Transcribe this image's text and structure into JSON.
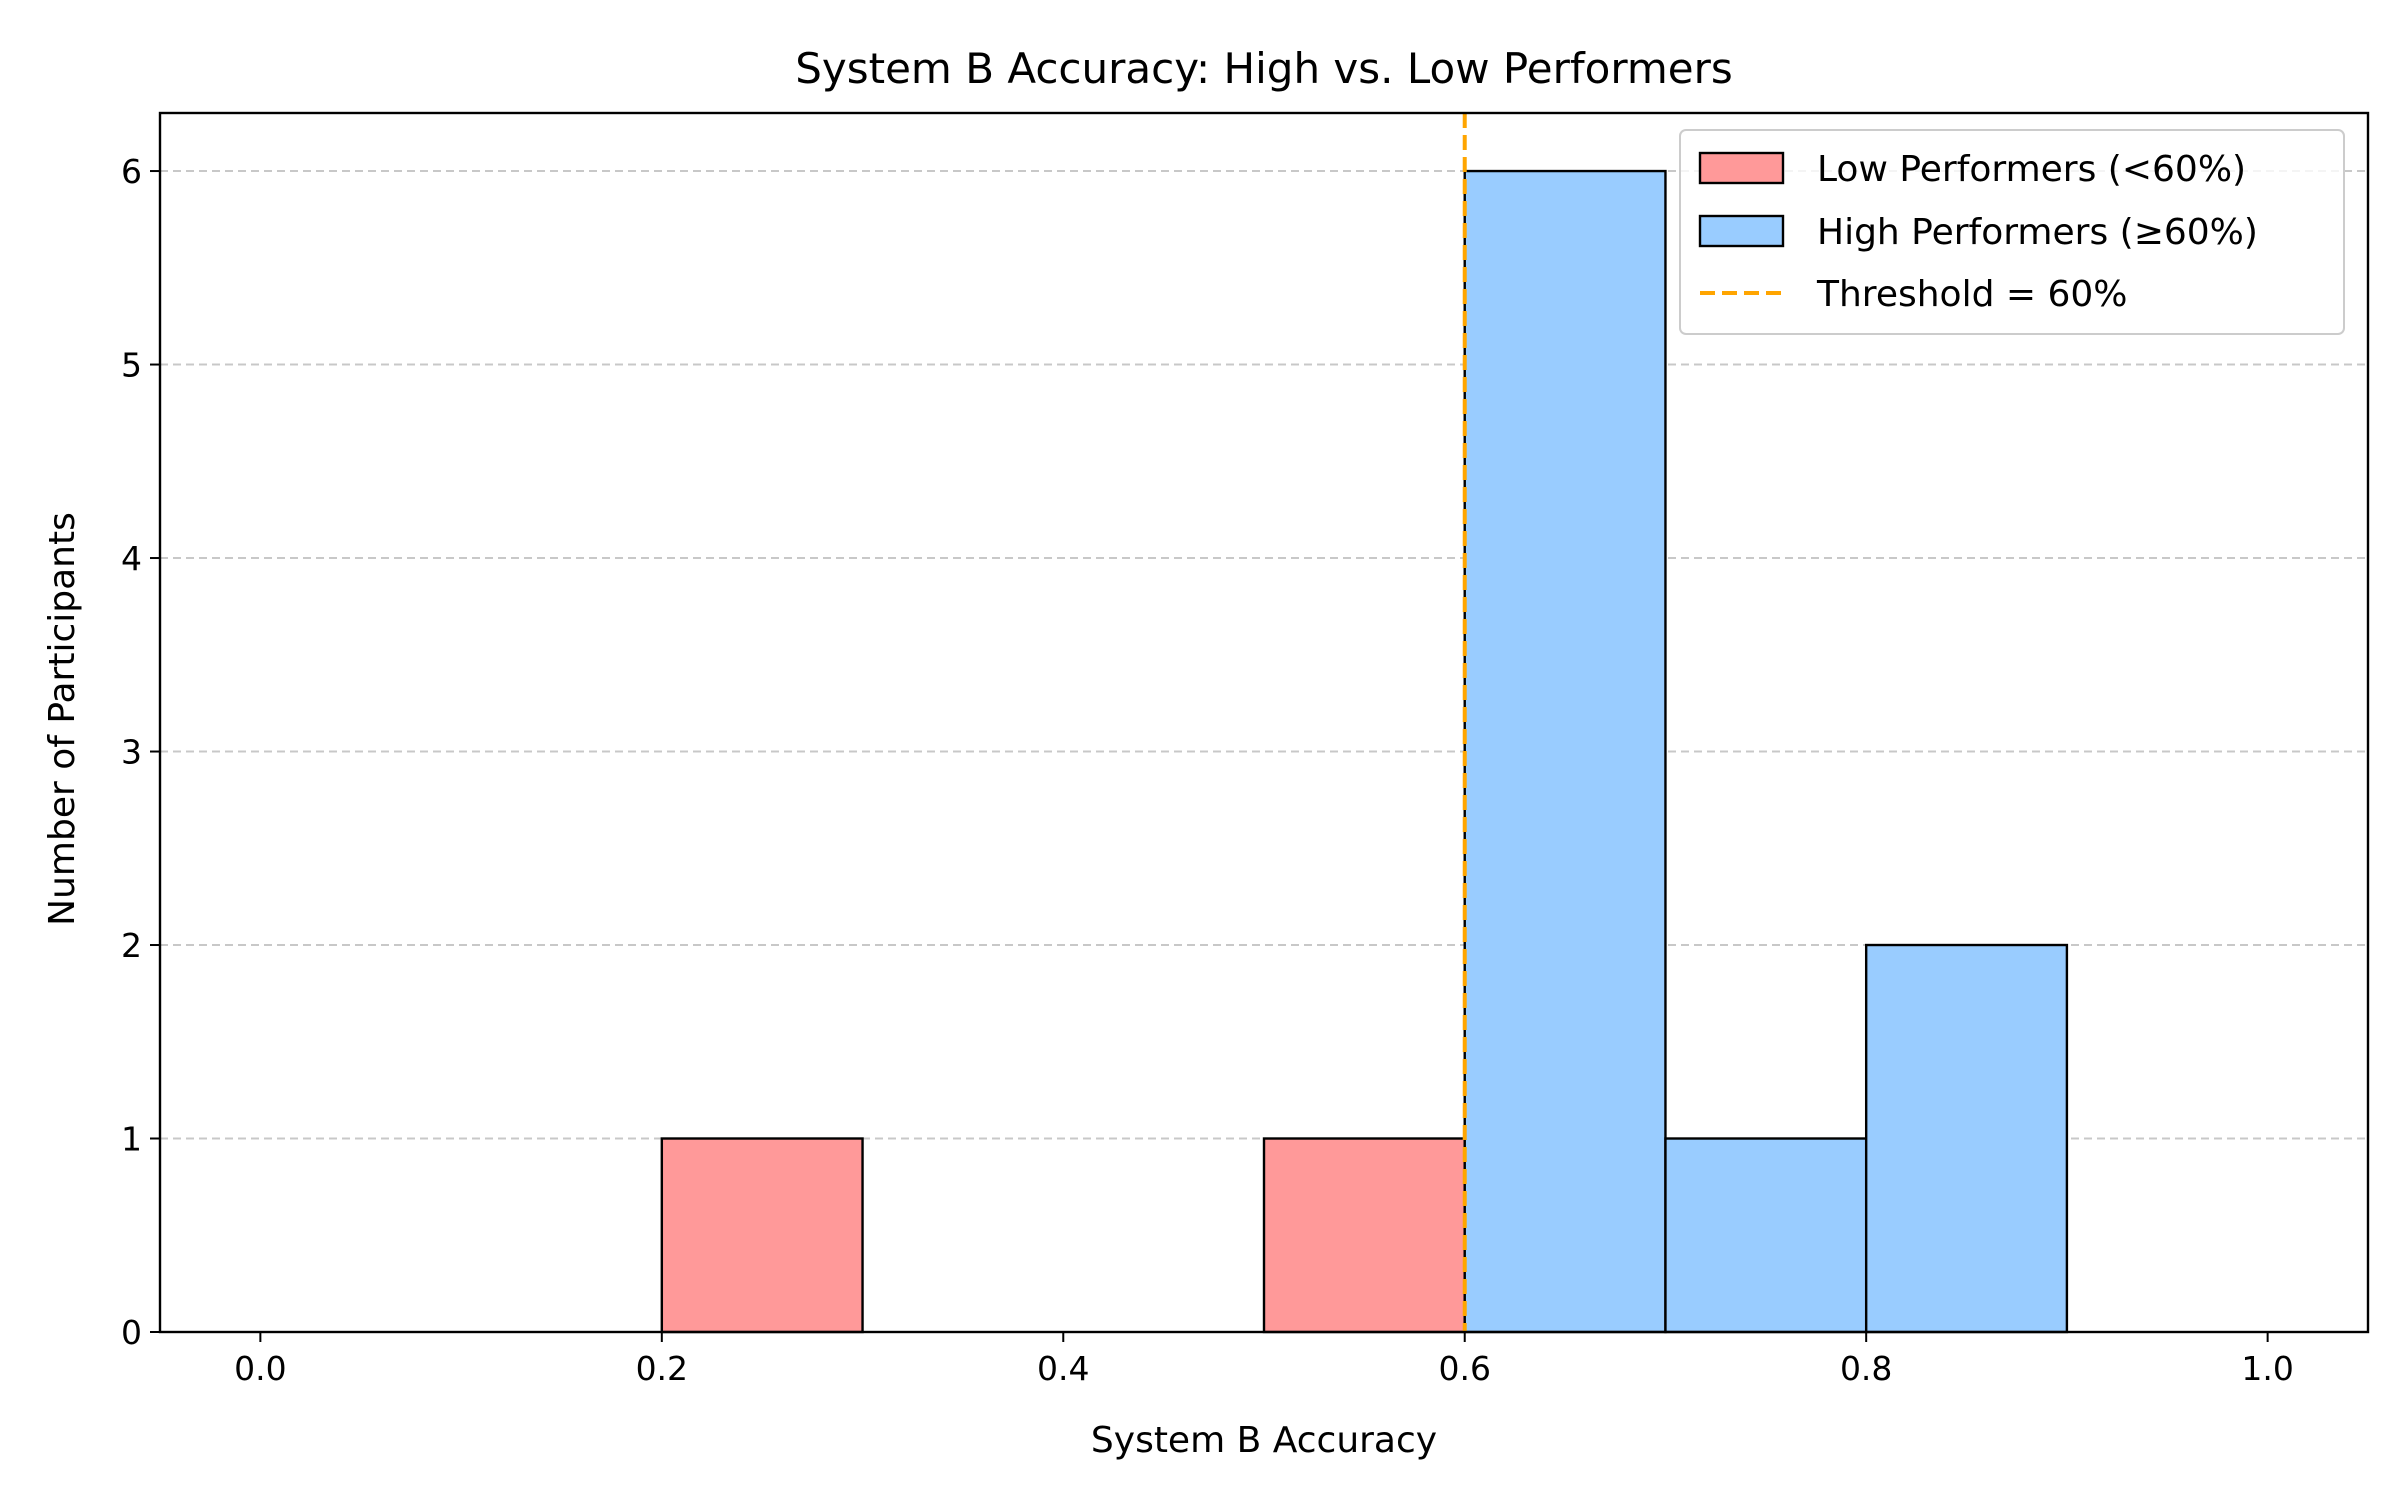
{
  "chart_data": {
    "type": "bar",
    "title": "System B Accuracy: High vs. Low Performers",
    "xlabel": "System B Accuracy",
    "ylabel": "Number of Participants",
    "xlim": [
      -0.05,
      1.05
    ],
    "ylim": [
      0,
      6.3
    ],
    "xticks": [
      0.0,
      0.2,
      0.4,
      0.6,
      0.8,
      1.0
    ],
    "xtick_labels": [
      "0.0",
      "0.2",
      "0.4",
      "0.6",
      "0.8",
      "1.0"
    ],
    "yticks": [
      0,
      1,
      2,
      3,
      4,
      5,
      6
    ],
    "ytick_labels": [
      "0",
      "1",
      "2",
      "3",
      "4",
      "5",
      "6"
    ],
    "grid": "y-dashed",
    "legend_position": "top-right",
    "bin_edges": [
      0.0,
      0.1,
      0.2,
      0.3,
      0.4,
      0.5,
      0.6,
      0.7,
      0.8,
      0.9,
      1.0
    ],
    "series": [
      {
        "name": "Low Performers (<60%)",
        "color": "#ff9999",
        "values": [
          0,
          0,
          1,
          0,
          0,
          1,
          0,
          0,
          0,
          0
        ]
      },
      {
        "name": "High Performers (≥60%)",
        "color": "#99ccff",
        "values": [
          0,
          0,
          0,
          0,
          0,
          0,
          6,
          1,
          2,
          0
        ]
      }
    ],
    "threshold": {
      "name": "Threshold = 60%",
      "x": 0.6,
      "color": "#ffa500"
    }
  }
}
